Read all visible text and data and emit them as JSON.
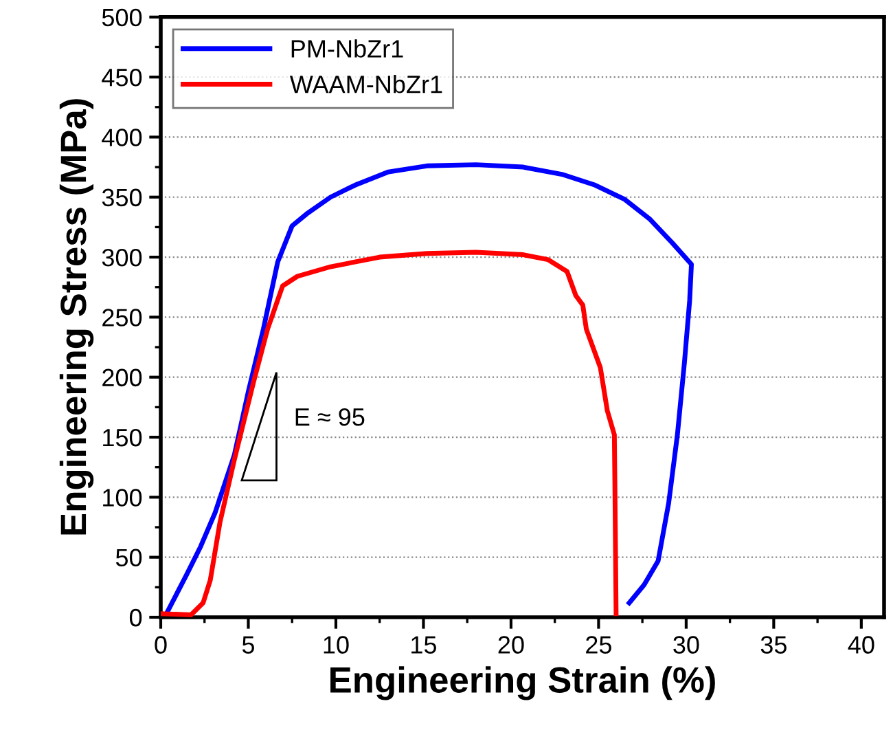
{
  "chart_data": {
    "type": "line",
    "xlabel": "Engineering Strain (%)",
    "ylabel": "Engineering Stress (MPa)",
    "xlim": [
      0,
      41.3
    ],
    "ylim": [
      0,
      500
    ],
    "xticks": [
      0,
      5,
      10,
      15,
      20,
      25,
      30,
      35,
      40
    ],
    "yticks": [
      0,
      50,
      100,
      150,
      200,
      250,
      300,
      350,
      400,
      450,
      500
    ],
    "grid": "y",
    "legend": "top left",
    "line_style": "solid",
    "marker": "none",
    "annotations": [
      "E ≈ 95"
    ],
    "series": [
      {
        "name": "PM-NbZr1",
        "color": "#0000ff",
        "x": [
          0.36,
          1.46,
          2.28,
          3.1,
          4.2,
          5.0,
          5.86,
          6.68,
          7.5,
          8.33,
          9.7,
          11.1,
          13.0,
          15.2,
          18.0,
          20.7,
          22.9,
          24.8,
          26.5,
          27.9,
          29.2,
          30.3,
          30.2,
          29.9,
          29.5,
          29.0,
          28.4,
          27.6,
          26.75
        ],
        "values": [
          4,
          35,
          59,
          87,
          135,
          188,
          240,
          296,
          326,
          336,
          350,
          360,
          371,
          376,
          377,
          375,
          369,
          360,
          348,
          332,
          312,
          294,
          264,
          212,
          152,
          95,
          47,
          27,
          12
        ]
      },
      {
        "name": "WAAM-NbZr1",
        "color": "#ff0000",
        "x": [
          0,
          1.73,
          2.42,
          2.83,
          3.38,
          4.2,
          5.3,
          6.1,
          6.96,
          7.8,
          9.7,
          12.5,
          15.2,
          18.0,
          20.7,
          22.1,
          23.2,
          23.7,
          24.1,
          24.3,
          25.1,
          25.5,
          25.9,
          25.93,
          26.0
        ],
        "values": [
          3,
          2,
          12,
          31,
          79,
          131,
          196,
          240,
          276,
          284,
          292,
          300,
          303,
          304,
          302,
          298,
          288,
          268,
          260,
          240,
          208,
          172,
          152,
          111,
          3
        ]
      }
    ]
  }
}
